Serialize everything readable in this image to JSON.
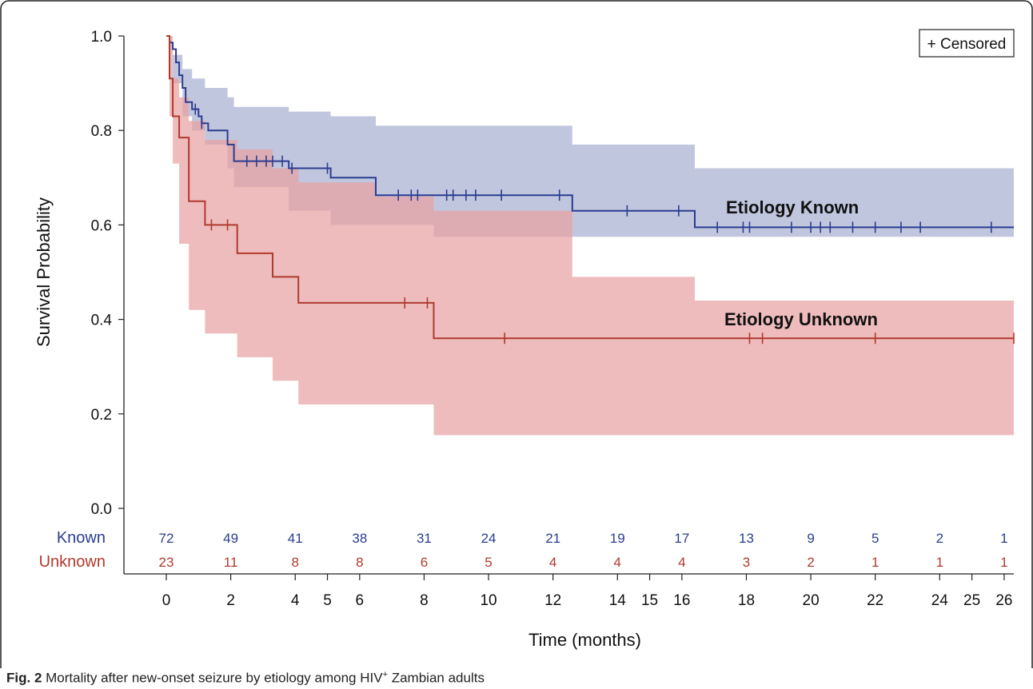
{
  "chart_data": {
    "type": "line",
    "subtype": "kaplan-meier",
    "xlabel": "Time (months)",
    "ylabel": "Survival Probability",
    "xlim": [
      0,
      26.3
    ],
    "ylim": [
      0,
      1.0
    ],
    "x_ticks": [
      0,
      2,
      4,
      5,
      6,
      8,
      10,
      12,
      14,
      15,
      16,
      18,
      20,
      22,
      24,
      25,
      26
    ],
    "y_ticks": [
      "0.0",
      "0.2",
      "0.4",
      "0.6",
      "0.8",
      "1.0"
    ],
    "legend": "+ Censored",
    "legend_position": "top-right",
    "series": [
      {
        "name": "Etiology Known",
        "color": "#2b3d8f",
        "band_color": "#a9b0d3",
        "steps": [
          [
            0,
            1.0
          ],
          [
            0.1,
            0.986
          ],
          [
            0.2,
            0.972
          ],
          [
            0.3,
            0.944
          ],
          [
            0.4,
            0.917
          ],
          [
            0.5,
            0.89
          ],
          [
            0.6,
            0.86
          ],
          [
            0.8,
            0.845
          ],
          [
            1.0,
            0.83
          ],
          [
            1.1,
            0.815
          ],
          [
            1.3,
            0.8
          ],
          [
            1.9,
            0.77
          ],
          [
            2.1,
            0.735
          ],
          [
            3.8,
            0.72
          ],
          [
            5.1,
            0.7
          ],
          [
            6.5,
            0.663
          ],
          [
            12.6,
            0.63
          ],
          [
            16.4,
            0.595
          ],
          [
            26.3,
            0.595
          ]
        ],
        "ci_upper": [
          [
            0,
            1.0
          ],
          [
            0.2,
            0.96
          ],
          [
            0.5,
            0.93
          ],
          [
            0.8,
            0.91
          ],
          [
            1.2,
            0.89
          ],
          [
            1.9,
            0.87
          ],
          [
            2.1,
            0.85
          ],
          [
            3.8,
            0.84
          ],
          [
            5.1,
            0.83
          ],
          [
            6.5,
            0.81
          ],
          [
            12.6,
            0.77
          ],
          [
            16.4,
            0.72
          ],
          [
            26.3,
            0.72
          ]
        ],
        "ci_lower": [
          [
            0,
            1.0
          ],
          [
            0.2,
            0.9
          ],
          [
            0.5,
            0.83
          ],
          [
            0.8,
            0.8
          ],
          [
            1.2,
            0.77
          ],
          [
            1.9,
            0.72
          ],
          [
            2.1,
            0.68
          ],
          [
            3.8,
            0.63
          ],
          [
            5.1,
            0.6
          ],
          [
            8.3,
            0.575
          ],
          [
            26.3,
            0.575
          ]
        ],
        "censored": [
          0.9,
          1.1,
          2.5,
          2.8,
          3.1,
          3.3,
          3.6,
          3.9,
          5.0,
          7.2,
          7.6,
          7.8,
          8.7,
          8.9,
          9.3,
          9.6,
          10.4,
          12.2,
          14.3,
          15.9,
          17.1,
          17.9,
          18.1,
          19.4,
          20.0,
          20.3,
          20.6,
          21.3,
          22.0,
          22.8,
          23.4,
          25.6
        ],
        "at_risk": [
          72,
          49,
          41,
          38,
          31,
          24,
          21,
          19,
          17,
          13,
          9,
          5,
          2,
          1
        ]
      },
      {
        "name": "Etiology Unknown",
        "color": "#b03a2e",
        "band_color": "#e8a2a2",
        "steps": [
          [
            0,
            1.0
          ],
          [
            0.1,
            0.91
          ],
          [
            0.2,
            0.83
          ],
          [
            0.4,
            0.785
          ],
          [
            0.7,
            0.65
          ],
          [
            1.2,
            0.6
          ],
          [
            2.2,
            0.54
          ],
          [
            3.3,
            0.49
          ],
          [
            4.1,
            0.435
          ],
          [
            8.3,
            0.36
          ],
          [
            26.3,
            0.36
          ]
        ],
        "ci_upper": [
          [
            0,
            1.0
          ],
          [
            0.2,
            0.91
          ],
          [
            0.4,
            0.87
          ],
          [
            0.7,
            0.82
          ],
          [
            1.2,
            0.78
          ],
          [
            2.2,
            0.76
          ],
          [
            3.3,
            0.72
          ],
          [
            4.1,
            0.69
          ],
          [
            6.5,
            0.66
          ],
          [
            8.3,
            0.63
          ],
          [
            12.6,
            0.49
          ],
          [
            16.4,
            0.44
          ],
          [
            26.3,
            0.44
          ]
        ],
        "ci_lower": [
          [
            0,
            1.0
          ],
          [
            0.1,
            0.83
          ],
          [
            0.2,
            0.73
          ],
          [
            0.4,
            0.56
          ],
          [
            0.7,
            0.42
          ],
          [
            1.2,
            0.37
          ],
          [
            2.2,
            0.32
          ],
          [
            3.3,
            0.27
          ],
          [
            4.1,
            0.22
          ],
          [
            8.3,
            0.155
          ],
          [
            26.3,
            0.155
          ]
        ],
        "censored": [
          1.4,
          1.9,
          7.4,
          8.1,
          10.5,
          18.1,
          18.5,
          22.0,
          26.3
        ],
        "at_risk": [
          23,
          11,
          8,
          8,
          6,
          5,
          4,
          4,
          4,
          3,
          2,
          1,
          1,
          1
        ]
      }
    ],
    "at_risk_labels": [
      "Known",
      "Unknown"
    ],
    "at_risk_times": [
      0,
      2,
      4,
      6,
      8,
      10,
      12,
      14,
      16,
      18,
      20,
      22,
      24,
      26
    ],
    "caption_prefix": "Fig. 2",
    "caption_text": "Mortality after new-onset seizure by etiology among HIV",
    "caption_sup": "+",
    "caption_suffix": " Zambian adults"
  }
}
